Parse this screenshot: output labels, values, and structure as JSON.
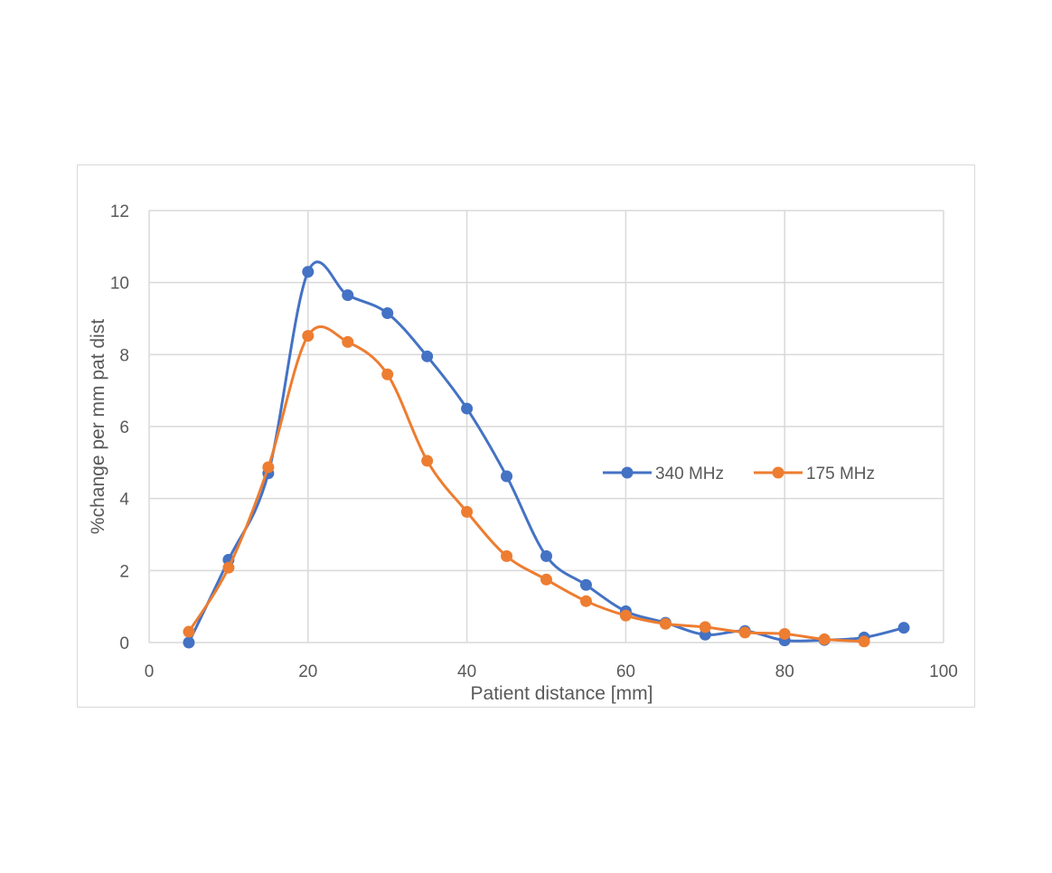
{
  "chart_data": {
    "type": "line",
    "xlabel": "Patient distance [mm]",
    "ylabel": "%change per mm pat dist",
    "xlim": [
      0,
      100
    ],
    "ylim": [
      0,
      12
    ],
    "x_ticks": [
      0,
      20,
      40,
      60,
      80,
      100
    ],
    "y_ticks": [
      0,
      2,
      4,
      6,
      8,
      10,
      12
    ],
    "grid": true,
    "smooth": true,
    "legend_position": "right-middle",
    "series": [
      {
        "name": "340 MHz",
        "color": "#4472c4",
        "x": [
          5,
          10,
          15,
          20,
          25,
          30,
          35,
          40,
          45,
          50,
          55,
          60,
          65,
          70,
          75,
          80,
          85,
          90,
          95
        ],
        "y": [
          0.0,
          2.3,
          4.7,
          10.3,
          9.65,
          9.15,
          7.95,
          6.5,
          4.62,
          2.4,
          1.6,
          0.87,
          0.55,
          0.22,
          0.32,
          0.06,
          0.07,
          0.14,
          0.41
        ]
      },
      {
        "name": "175 MHz",
        "color": "#ed7d31",
        "x": [
          5,
          10,
          15,
          20,
          25,
          30,
          35,
          40,
          45,
          50,
          55,
          60,
          65,
          70,
          75,
          80,
          85,
          90
        ],
        "y": [
          0.3,
          2.08,
          4.87,
          8.52,
          8.35,
          7.45,
          5.05,
          3.63,
          2.4,
          1.75,
          1.15,
          0.75,
          0.52,
          0.43,
          0.28,
          0.24,
          0.09,
          0.03
        ]
      }
    ]
  }
}
